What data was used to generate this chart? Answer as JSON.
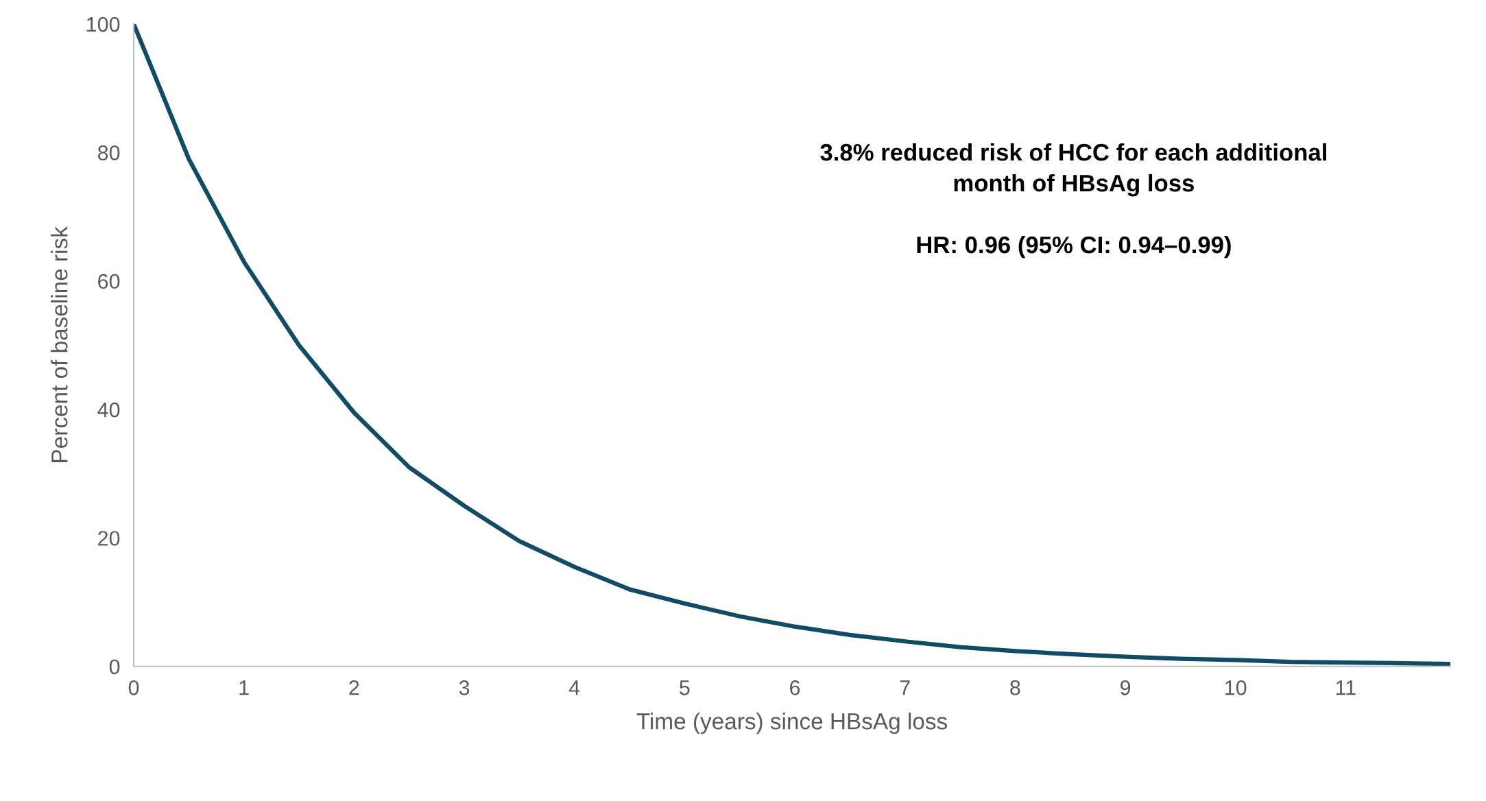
{
  "chart_data": {
    "type": "line",
    "xlabel": "Time (years) since HBsAg loss",
    "ylabel": "Percent of baseline risk",
    "annotations": [
      "3.8% reduced risk of HCC for each additional\nmonth of HBsAg loss",
      "HR: 0.96 (95% CI: 0.94–0.99)"
    ],
    "series": [
      {
        "color": "#124b66",
        "x": [
          0,
          0.5,
          1,
          1.5,
          2,
          2.5,
          3,
          3.5,
          4,
          4.5,
          5,
          5.5,
          6,
          6.5,
          7,
          7.5,
          8,
          8.5,
          9,
          9.5,
          10,
          10.5,
          11,
          11.5,
          11.95
        ],
        "values": [
          100,
          79,
          63,
          50,
          39.5,
          31,
          25,
          19.5,
          15.5,
          12,
          9.8,
          7.8,
          6.2,
          4.9,
          3.9,
          3,
          2.4,
          1.9,
          1.5,
          1.2,
          1,
          0.7,
          0.6,
          0.5,
          0.4
        ]
      }
    ],
    "xlim": [
      0,
      11.95
    ],
    "xticks": [
      0,
      1,
      2,
      3,
      4,
      5,
      6,
      7,
      8,
      9,
      10,
      11
    ],
    "ylim": [
      0,
      100
    ],
    "yticks": [
      0,
      20,
      40,
      60,
      80,
      100
    ],
    "grid": false,
    "legend": false,
    "marker": "none",
    "line_style": "solid"
  }
}
